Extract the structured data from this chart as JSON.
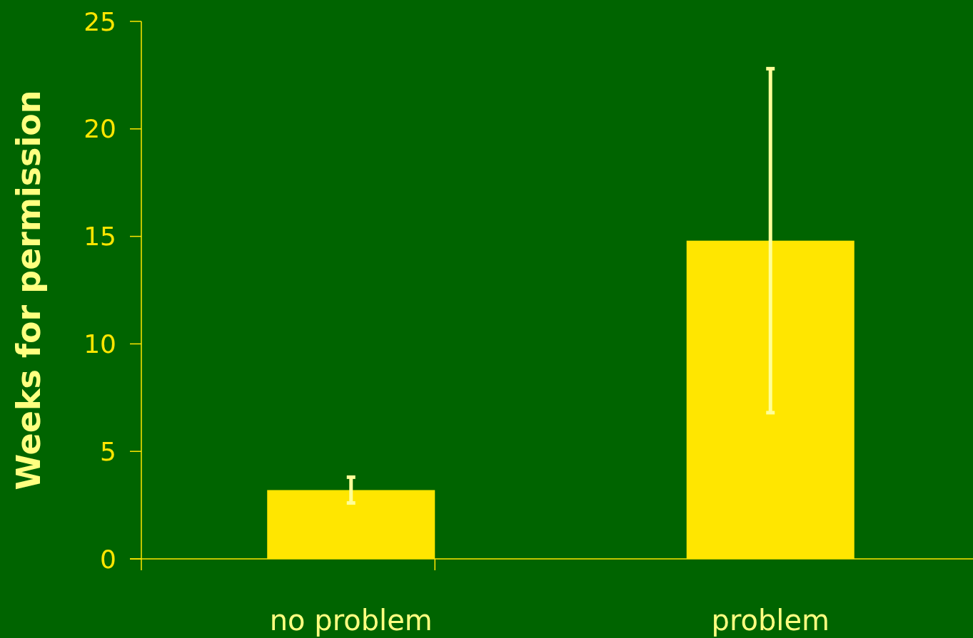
{
  "chart_data": {
    "type": "bar",
    "ylabel": "Weeks for permission",
    "categories": [
      "no problem",
      "problem"
    ],
    "values": [
      3.2,
      14.8
    ],
    "color": "#ffe600",
    "errors": [
      [
        2.6,
        3.8
      ],
      [
        6.8,
        22.8
      ]
    ],
    "ylim": [
      0,
      25
    ],
    "yticks": [
      0,
      5,
      10,
      15,
      20,
      25
    ],
    "grid": false
  }
}
